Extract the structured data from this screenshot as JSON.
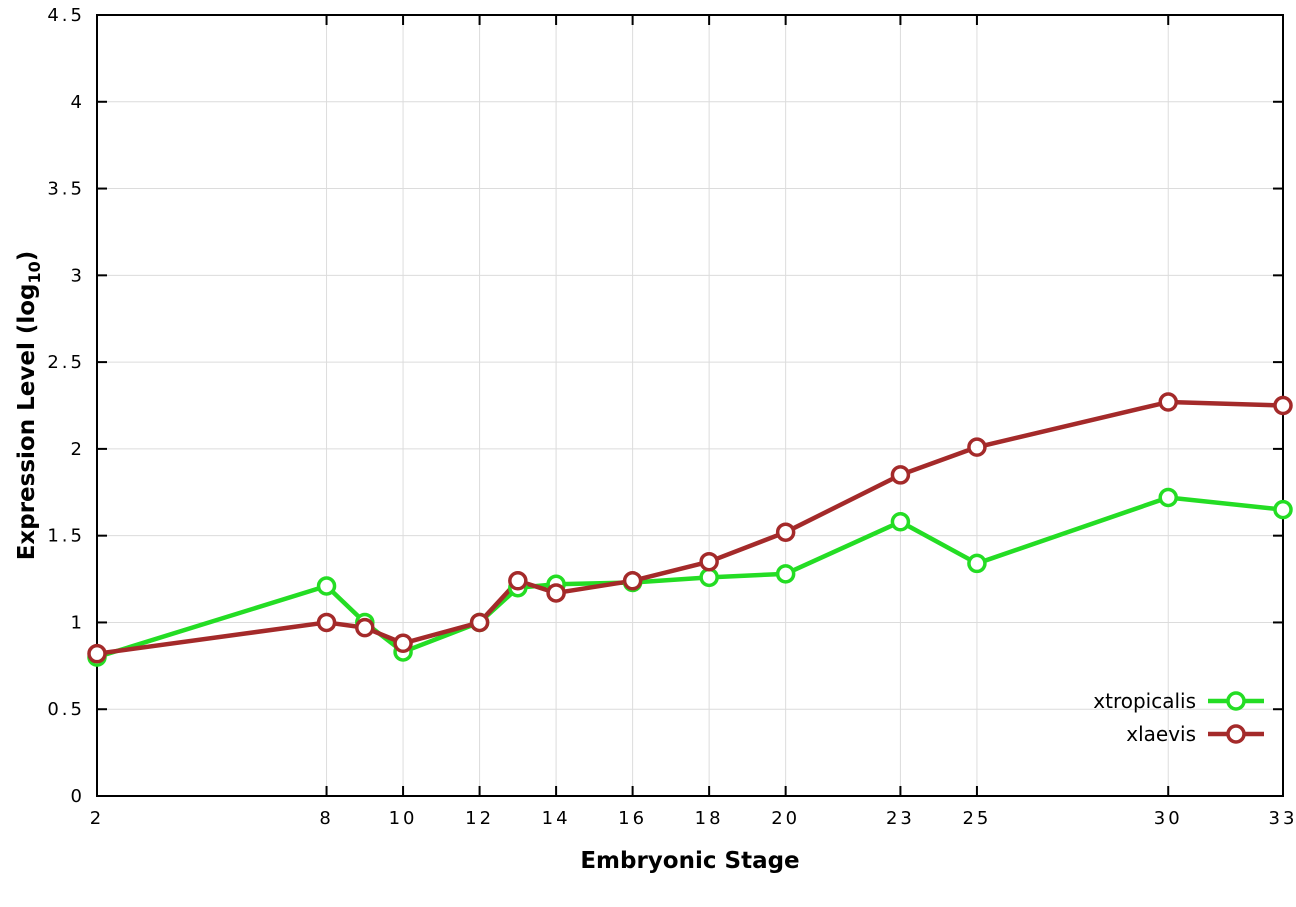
{
  "chart_data": {
    "type": "line",
    "title": "",
    "xlabel": "Embryonic Stage",
    "ylabel": "Expression Level (log10)",
    "ylabel_main": "Expression Level (log",
    "ylabel_sub": "10",
    "ylabel_end": ")",
    "xlim": [
      2,
      33
    ],
    "ylim": [
      0,
      4.5
    ],
    "grid": true,
    "grid_color": "#dcdcdc",
    "border_color": "#000000",
    "legend_position": "bottom-right",
    "xticks": [
      2,
      8,
      10,
      12,
      14,
      16,
      18,
      20,
      23,
      25,
      30,
      33
    ],
    "xtick_labels": [
      "2",
      "8",
      "10",
      "12",
      "14",
      "16",
      "18",
      "20",
      "23",
      "25",
      "30",
      "33"
    ],
    "yticks": [
      0,
      0.5,
      1,
      1.5,
      2,
      2.5,
      3,
      3.5,
      4,
      4.5
    ],
    "ytick_labels": [
      "0",
      "0.5",
      "1",
      "1.5",
      "2",
      "2.5",
      "3",
      "3.5",
      "4",
      "4.5"
    ],
    "x": [
      2,
      8,
      9,
      10,
      12,
      13,
      14,
      16,
      18,
      20,
      23,
      25,
      30,
      33
    ],
    "series": [
      {
        "name": "xtropicalis",
        "color": "#24dd24",
        "values": [
          0.8,
          1.21,
          1.0,
          0.83,
          1.0,
          1.2,
          1.22,
          1.23,
          1.26,
          1.28,
          1.58,
          1.34,
          1.72,
          1.65
        ]
      },
      {
        "name": "xlaevis",
        "color": "#a42a2a",
        "values": [
          0.82,
          1.0,
          0.97,
          0.88,
          1.0,
          1.24,
          1.17,
          1.24,
          1.35,
          1.52,
          1.85,
          2.01,
          2.27,
          2.25
        ]
      }
    ]
  }
}
